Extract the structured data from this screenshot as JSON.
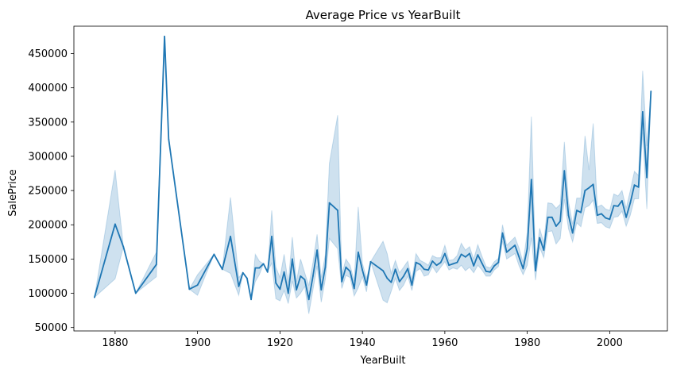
{
  "chart_data": {
    "type": "line",
    "title": "Average Price vs YearBuilt",
    "xlabel": "YearBuilt",
    "ylabel": "SalePrice",
    "xlim": [
      1870,
      2014
    ],
    "ylim": [
      45000,
      490000
    ],
    "xticks": [
      1880,
      1900,
      1920,
      1940,
      1960,
      1980,
      2000
    ],
    "yticks": [
      50000,
      100000,
      150000,
      200000,
      250000,
      300000,
      350000,
      400000,
      450000
    ],
    "grid": false,
    "line_color": "#1f77b4",
    "band_color": "#1f77b4",
    "series": [
      {
        "x": [
          1875,
          1880,
          1882,
          1885,
          1890,
          1892,
          1893,
          1898,
          1900,
          1904,
          1906,
          1908,
          1910,
          1911,
          1912,
          1913,
          1914,
          1915,
          1916,
          1917,
          1918,
          1919,
          1920,
          1921,
          1922,
          1923,
          1924,
          1925,
          1926,
          1927,
          1928,
          1929,
          1930,
          1931,
          1932,
          1934,
          1935,
          1936,
          1937,
          1938,
          1939,
          1940,
          1941,
          1942,
          1945,
          1946,
          1947,
          1948,
          1949,
          1950,
          1951,
          1952,
          1953,
          1954,
          1955,
          1956,
          1957,
          1958,
          1959,
          1960,
          1961,
          1962,
          1963,
          1964,
          1965,
          1966,
          1967,
          1968,
          1969,
          1970,
          1971,
          1972,
          1973,
          1974,
          1975,
          1976,
          1977,
          1978,
          1979,
          1980,
          1981,
          1982,
          1983,
          1984,
          1985,
          1986,
          1987,
          1988,
          1989,
          1990,
          1991,
          1992,
          1993,
          1994,
          1995,
          1996,
          1997,
          1998,
          1999,
          2000,
          2001,
          2002,
          2003,
          2004,
          2005,
          2006,
          2007,
          2008,
          2009,
          2010
        ],
        "y": [
          94000,
          201000,
          168000,
          100000,
          142000,
          475000,
          325000,
          106000,
          112000,
          157000,
          135000,
          183000,
          110000,
          130000,
          122000,
          91000,
          137000,
          137000,
          143000,
          131000,
          183000,
          115000,
          106000,
          131000,
          100000,
          150000,
          105000,
          125000,
          120000,
          91000,
          125000,
          163000,
          105000,
          138000,
          232000,
          221000,
          117000,
          138000,
          132000,
          107000,
          160000,
          134000,
          112000,
          146000,
          133000,
          122000,
          116000,
          135000,
          117000,
          125000,
          136000,
          112000,
          145000,
          142000,
          135000,
          134000,
          147000,
          141000,
          145000,
          158000,
          141000,
          143000,
          145000,
          157000,
          153000,
          158000,
          140000,
          156000,
          144000,
          132000,
          131000,
          140000,
          145000,
          188000,
          160000,
          165000,
          170000,
          153000,
          136000,
          165000,
          266000,
          133000,
          181000,
          163000,
          211000,
          211000,
          198000,
          205000,
          279000,
          214000,
          188000,
          221000,
          218000,
          250000,
          254000,
          259000,
          214000,
          216000,
          210000,
          208000,
          228000,
          227000,
          235000,
          211000,
          232000,
          258000,
          255000,
          365000,
          269000,
          395000
        ],
        "lower": [
          94000,
          121000,
          168000,
          100000,
          124000,
          475000,
          325000,
          106000,
          97000,
          157000,
          135000,
          129000,
          97000,
          130000,
          122000,
          91000,
          117000,
          127000,
          143000,
          131000,
          144000,
          92000,
          89000,
          104000,
          85000,
          118000,
          93000,
          100000,
          110000,
          70000,
          105000,
          140000,
          87000,
          120000,
          180000,
          165000,
          107000,
          126000,
          123000,
          96000,
          108000,
          124000,
          102000,
          146000,
          90000,
          86000,
          103000,
          122000,
          104000,
          112000,
          125000,
          104000,
          132000,
          136000,
          125000,
          127000,
          139000,
          130000,
          138000,
          146000,
          134000,
          137000,
          135000,
          141000,
          133000,
          138000,
          130000,
          141000,
          134000,
          125000,
          125000,
          134000,
          139000,
          176000,
          150000,
          154000,
          158000,
          140000,
          127000,
          141000,
          181000,
          119000,
          167000,
          152000,
          190000,
          191000,
          172000,
          180000,
          237000,
          194000,
          175000,
          203000,
          197000,
          225000,
          228000,
          236000,
          202000,
          203000,
          197000,
          195000,
          211000,
          212000,
          220000,
          198000,
          214000,
          238000,
          238000,
          335000,
          223000,
          395000
        ],
        "upper": [
          94000,
          280000,
          168000,
          100000,
          160000,
          475000,
          325000,
          106000,
          127000,
          157000,
          135000,
          240000,
          123000,
          130000,
          122000,
          91000,
          157000,
          147000,
          143000,
          131000,
          221000,
          138000,
          123000,
          157000,
          115000,
          182000,
          117000,
          150000,
          130000,
          111000,
          145000,
          186000,
          123000,
          156000,
          290000,
          360000,
          127000,
          150000,
          141000,
          118000,
          226000,
          144000,
          122000,
          146000,
          176000,
          158000,
          129000,
          148000,
          130000,
          138000,
          147000,
          120000,
          158000,
          148000,
          145000,
          141000,
          155000,
          152000,
          152000,
          170000,
          148000,
          149000,
          155000,
          173000,
          163000,
          168000,
          150000,
          171000,
          154000,
          139000,
          137000,
          146000,
          151000,
          200000,
          170000,
          176000,
          182000,
          166000,
          145000,
          189000,
          358000,
          147000,
          195000,
          174000,
          232000,
          231000,
          224000,
          230000,
          321000,
          234000,
          201000,
          239000,
          239000,
          330000,
          280000,
          348000,
          226000,
          229000,
          223000,
          221000,
          245000,
          242000,
          250000,
          224000,
          250000,
          278000,
          272000,
          425000,
          315000,
          395000
        ]
      }
    ]
  }
}
